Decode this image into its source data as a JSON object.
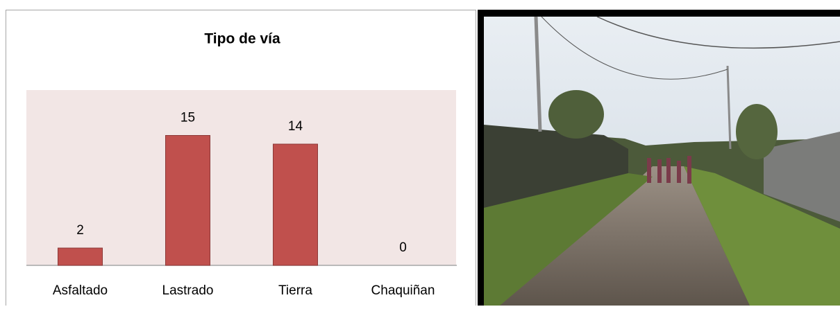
{
  "chart_data": {
    "type": "bar",
    "title": "Tipo de vía",
    "categories": [
      "Asfaltado",
      "Lastrado",
      "Tierra",
      "Chaquiñan"
    ],
    "values": [
      2,
      15,
      14,
      0
    ],
    "color": "#c0504d",
    "ylim": [
      0,
      20
    ]
  }
}
